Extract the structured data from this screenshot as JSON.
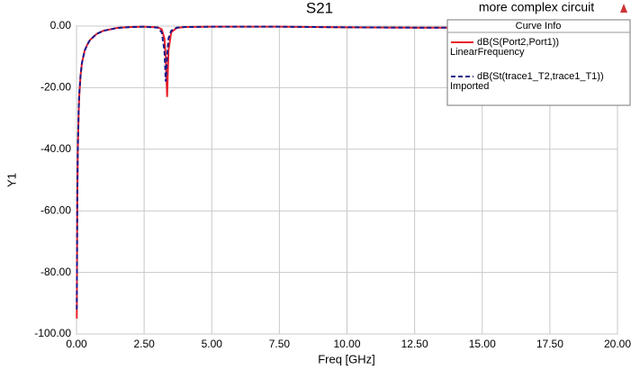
{
  "chart_data": {
    "type": "line",
    "title": "S21",
    "subtitle": "more complex circuit",
    "x_label": "Freq [GHz]",
    "y_label": "Y1",
    "legend_title": "Curve Info",
    "x": [
      0.01,
      0.03,
      0.05,
      0.08,
      0.1,
      0.15,
      0.2,
      0.3,
      0.4,
      0.5,
      0.75,
      1,
      1.5,
      2,
      2.5,
      3,
      3.15,
      3.25,
      3.3,
      3.35,
      3.4,
      3.5,
      3.7,
      4,
      5,
      7.5,
      10,
      12.5,
      15,
      17.5,
      20
    ],
    "series": [
      {
        "name": "dB(S(Port2,Port1))",
        "source": "LinearFrequency",
        "color": "#e8202a",
        "dash": false,
        "values": [
          -95,
          -55,
          -40,
          -28,
          -23,
          -16,
          -12,
          -8,
          -6,
          -4.5,
          -2.5,
          -1.5,
          -0.6,
          -0.3,
          -0.2,
          -0.4,
          -1,
          -4,
          -10,
          -23,
          -8,
          -2,
          -0.6,
          -0.3,
          -0.2,
          -0.2,
          -0.4,
          -0.5,
          -0.5,
          -0.4,
          -0.3
        ]
      },
      {
        "name": "dB(St(trace1_T2,trace1_T1))",
        "source": "Imported",
        "color": "#1a1a8c",
        "dash": true,
        "values": [
          -92,
          -54,
          -39,
          -27,
          -22,
          -16,
          -12,
          -8,
          -6,
          -4.5,
          -2.5,
          -1.5,
          -0.6,
          -0.3,
          -0.2,
          -0.5,
          -2,
          -8,
          -18,
          -10,
          -4,
          -1.5,
          -0.5,
          -0.3,
          -0.2,
          -0.2,
          -0.4,
          -0.5,
          -0.5,
          -0.4,
          -0.3
        ]
      }
    ],
    "xlim": [
      0,
      20
    ],
    "xticks": [
      {
        "value": 0,
        "label": "0.00"
      },
      {
        "value": 2.5,
        "label": "2.50"
      },
      {
        "value": 5,
        "label": "5.00"
      },
      {
        "value": 7.5,
        "label": "7.50"
      },
      {
        "value": 10,
        "label": "10.00"
      },
      {
        "value": 12.5,
        "label": "12.50"
      },
      {
        "value": 15,
        "label": "15.00"
      },
      {
        "value": 17.5,
        "label": "17.50"
      },
      {
        "value": 20,
        "label": "20.00"
      }
    ],
    "ylim": [
      -100,
      0
    ],
    "yticks": [
      {
        "value": 0,
        "label": "0.00"
      },
      {
        "value": -20,
        "label": "-20.00"
      },
      {
        "value": -40,
        "label": "-40.00"
      },
      {
        "value": -60,
        "label": "-60.00"
      },
      {
        "value": -80,
        "label": "-80.00"
      },
      {
        "value": -100,
        "label": "-100.00"
      }
    ],
    "grid": true
  }
}
